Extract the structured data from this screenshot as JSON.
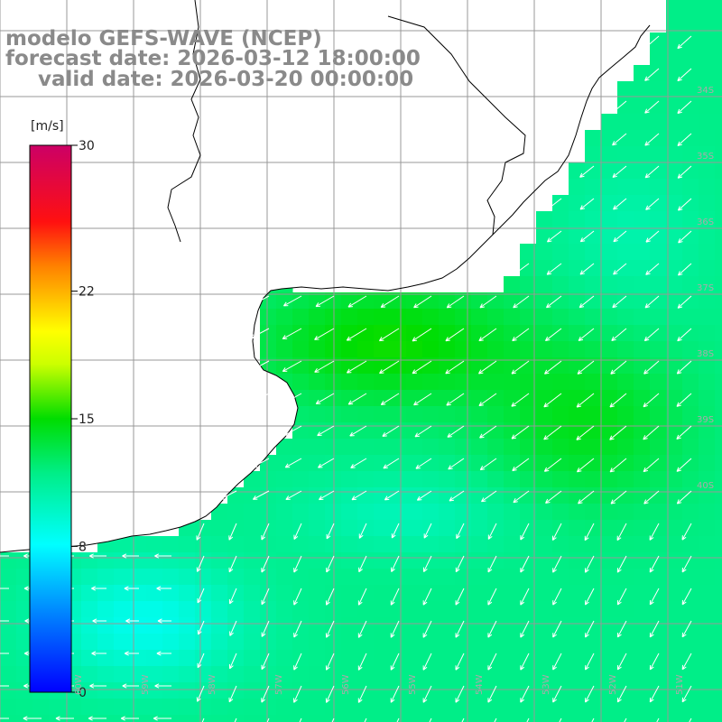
{
  "header": {
    "model_line": "modelo GEFS-WAVE (NCEP)",
    "forecast_line": "forecast date: 2026-03-12 18:00:00",
    "valid_line": "valid date: 2026-03-20 00:00:00"
  },
  "colorbar": {
    "units": "[m/s]",
    "ticks": [
      "30",
      "22",
      "15",
      "8",
      "0"
    ],
    "range": [
      0,
      30
    ],
    "colors": [
      "#0000ff",
      "#00bfff",
      "#00ffff",
      "#00dd00",
      "#ffff00",
      "#ff8000",
      "#ff0000",
      "#cc0066"
    ]
  },
  "map": {
    "lat_labels": [
      "34S",
      "35S",
      "36S",
      "37S",
      "38S",
      "39S",
      "40S"
    ],
    "lon_labels": [
      "60W",
      "59W",
      "58W",
      "57W",
      "56W",
      "55W",
      "54W",
      "53W",
      "52W",
      "51W"
    ],
    "land_color": "#ffffff",
    "grid_color": "#999999",
    "coast_color": "#000000",
    "arrow_color": "#ffffff"
  }
}
